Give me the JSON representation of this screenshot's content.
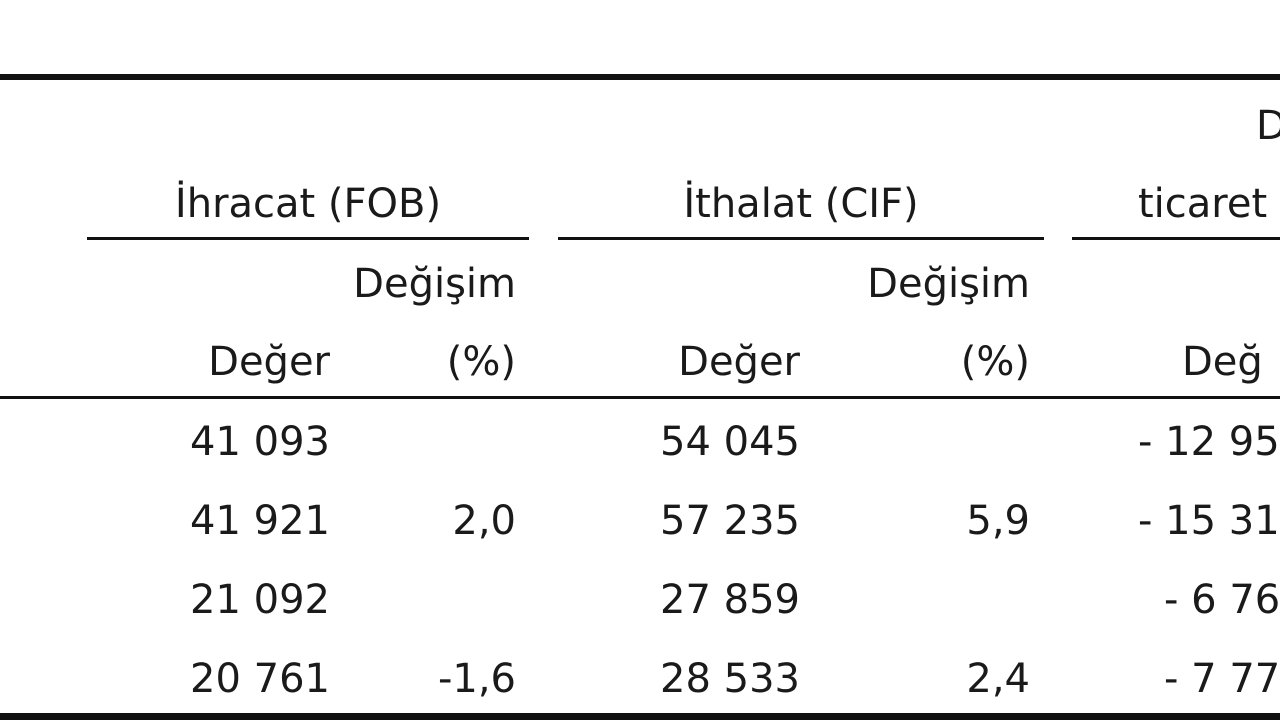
{
  "table": {
    "groups": {
      "exports": "İhracat (FOB)",
      "imports": "İthalat (CIF)",
      "trade_top": "D",
      "trade": "ticaret"
    },
    "sub_headers": {
      "exports_change_top": "Değişim",
      "exports_value": "Değer",
      "exports_change_unit": "(%)",
      "imports_change_top": "Değişim",
      "imports_value": "Değer",
      "imports_change_unit": "(%)",
      "trade_value": "Değ"
    },
    "rows": [
      {
        "exp_value": "41 093",
        "exp_change": "",
        "imp_value": "54 045",
        "imp_change": "",
        "trade": "- 12 95"
      },
      {
        "exp_value": "41 921",
        "exp_change": "2,0",
        "imp_value": "57 235",
        "imp_change": "5,9",
        "trade": "- 15 31"
      },
      {
        "exp_value": "21 092",
        "exp_change": "",
        "imp_value": "27 859",
        "imp_change": "",
        "trade": "- 6 76"
      },
      {
        "exp_value": "20 761",
        "exp_change": "-1,6",
        "imp_value": "28 533",
        "imp_change": "2,4",
        "trade": "- 7 77"
      }
    ]
  }
}
